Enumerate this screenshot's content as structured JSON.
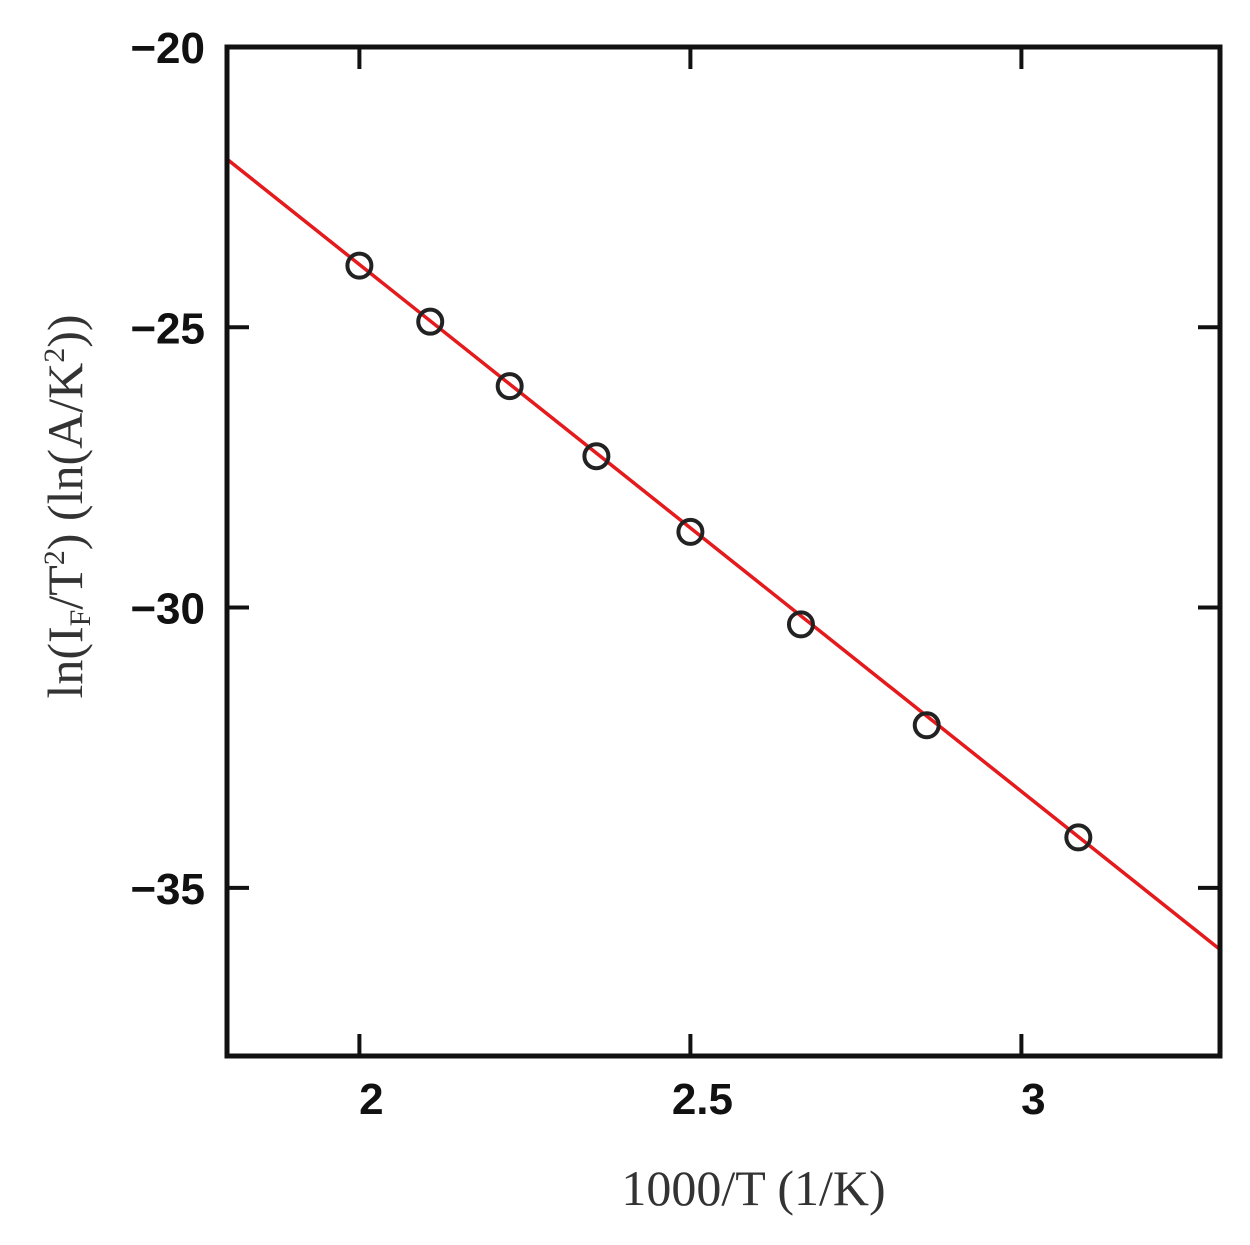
{
  "chart_data": {
    "type": "scatter",
    "xlabel": "1000/T (1/K)",
    "ylabel": {
      "prefix": "ln(I",
      "sub": "F",
      "mid1": "/T",
      "sup1": "2",
      "mid2": ") (ln(A/K",
      "sup2": "2",
      "suffix": "))"
    },
    "xlim": [
      1.8,
      3.3
    ],
    "ylim": [
      -38,
      -20
    ],
    "xticks": [
      {
        "value": 2,
        "label": "2"
      },
      {
        "value": 2.5,
        "label": "2.5"
      },
      {
        "value": 3,
        "label": "3"
      }
    ],
    "yticks": [
      {
        "value": -20,
        "label": "−20"
      },
      {
        "value": -25,
        "label": "−25"
      },
      {
        "value": -30,
        "label": "−30"
      },
      {
        "value": -35,
        "label": "−35"
      }
    ],
    "series": [
      {
        "kind": "points",
        "marker": "open-circle",
        "color": "#222222",
        "points": [
          {
            "x": 2.0,
            "y": -23.9
          },
          {
            "x": 2.107,
            "y": -24.9
          },
          {
            "x": 2.227,
            "y": -26.05
          },
          {
            "x": 2.358,
            "y": -27.3
          },
          {
            "x": 2.5,
            "y": -28.65
          },
          {
            "x": 2.667,
            "y": -30.3
          },
          {
            "x": 2.857,
            "y": -32.1
          },
          {
            "x": 3.086,
            "y": -34.1
          }
        ]
      },
      {
        "kind": "fit-line",
        "color": "#e41a1c",
        "x": [
          1.8,
          3.3
        ],
        "y": [
          -22.0,
          -36.1
        ]
      }
    ],
    "grid": false,
    "legend": "none"
  }
}
